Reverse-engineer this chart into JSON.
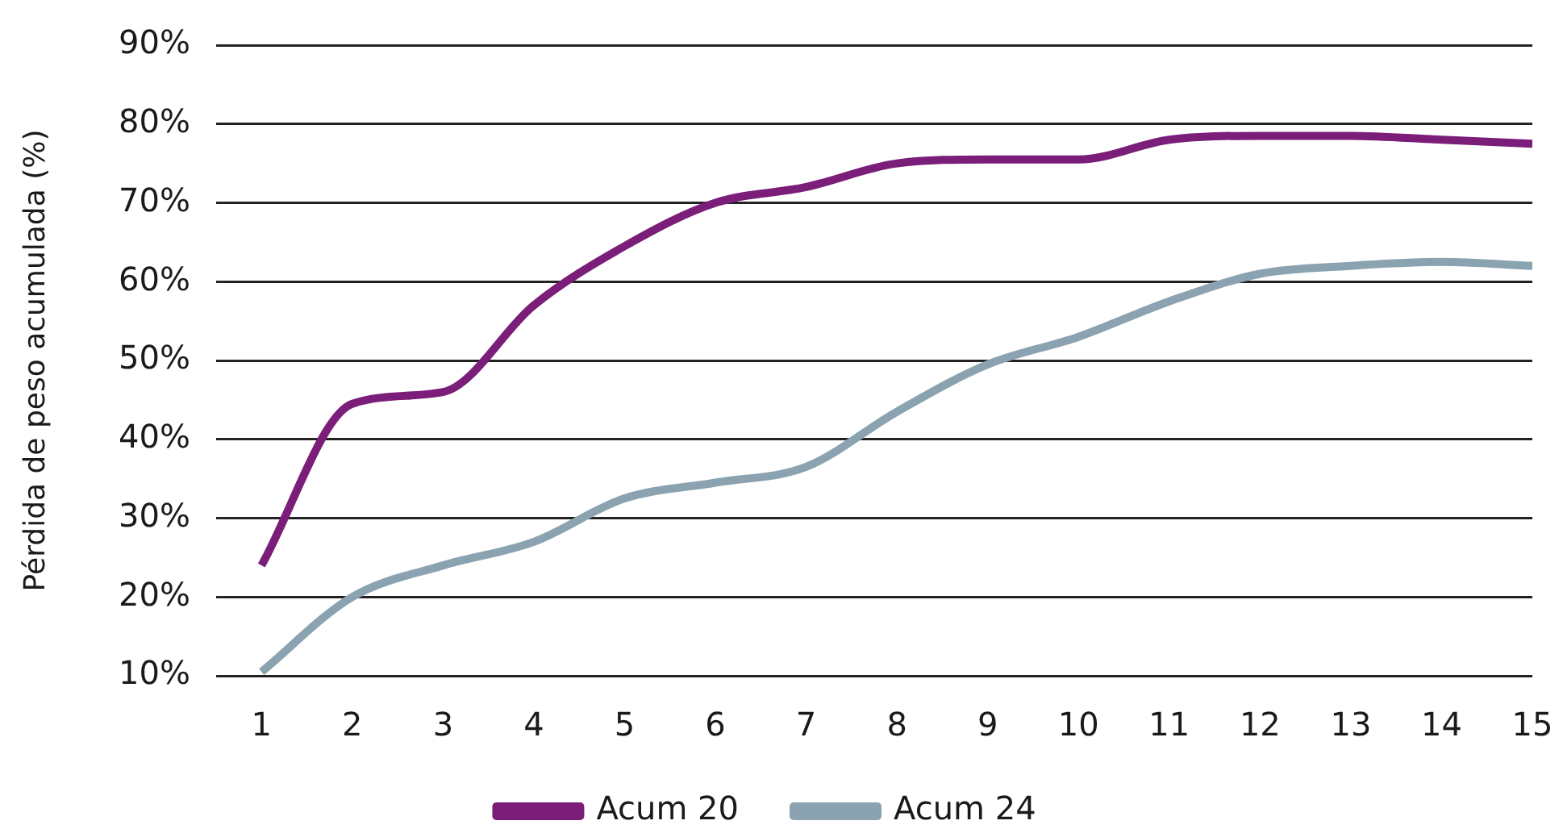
{
  "chart_data": {
    "type": "line",
    "ylabel": "Pérdida de peso acumulada (%)",
    "x": [
      1,
      2,
      3,
      4,
      5,
      6,
      7,
      8,
      9,
      10,
      11,
      12,
      13,
      14,
      15
    ],
    "xlim": [
      0.5,
      15
    ],
    "xticks": [
      1,
      2,
      3,
      4,
      5,
      6,
      7,
      8,
      9,
      10,
      11,
      12,
      13,
      14,
      15
    ],
    "ylim": [
      10,
      90
    ],
    "yticks": [
      {
        "value": 10,
        "label": "10%"
      },
      {
        "value": 20,
        "label": "20%"
      },
      {
        "value": 30,
        "label": "30%"
      },
      {
        "value": 40,
        "label": "40%"
      },
      {
        "value": 50,
        "label": "50%"
      },
      {
        "value": 60,
        "label": "60%"
      },
      {
        "value": 70,
        "label": "70%"
      },
      {
        "value": 80,
        "label": "80%"
      },
      {
        "value": 90,
        "label": "90%"
      }
    ],
    "series": [
      {
        "name": "Acum 20",
        "color": "#7b1e7a",
        "values": [
          24,
          44.5,
          46,
          57,
          64.5,
          70,
          72,
          75,
          75.5,
          75.5,
          78,
          78.5,
          78.5,
          78,
          77.5
        ]
      },
      {
        "name": "Acum 24",
        "color": "#8ba3b1",
        "values": [
          10.5,
          20,
          24,
          27,
          32.5,
          34.5,
          36.5,
          43.5,
          49.5,
          53,
          57.5,
          61,
          62,
          62.5,
          62
        ]
      }
    ],
    "grid": "y",
    "legend": "bottom",
    "marker": "none"
  }
}
